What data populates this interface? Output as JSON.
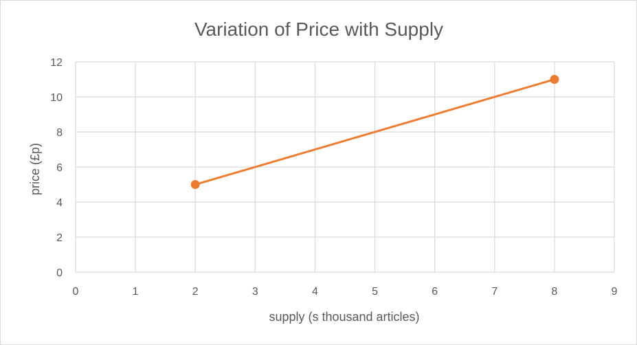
{
  "chart_data": {
    "type": "scatter",
    "title": "Variation of Price with Supply",
    "xlabel": "supply (s thousand articles)",
    "ylabel": "price (£p)",
    "xlim": [
      0,
      9
    ],
    "ylim": [
      0,
      12
    ],
    "x_ticks": [
      0,
      1,
      2,
      3,
      4,
      5,
      6,
      7,
      8,
      9
    ],
    "y_ticks": [
      0,
      2,
      4,
      6,
      8,
      10,
      12
    ],
    "grid": true,
    "legend": "none",
    "series": [
      {
        "x": [
          2,
          8
        ],
        "y": [
          5,
          11
        ],
        "mode": "lines+markers",
        "color": "#ed7d31"
      }
    ],
    "colors": {
      "grid": "#d9d9d9",
      "text": "#595959",
      "series": "#ed7d31"
    }
  }
}
